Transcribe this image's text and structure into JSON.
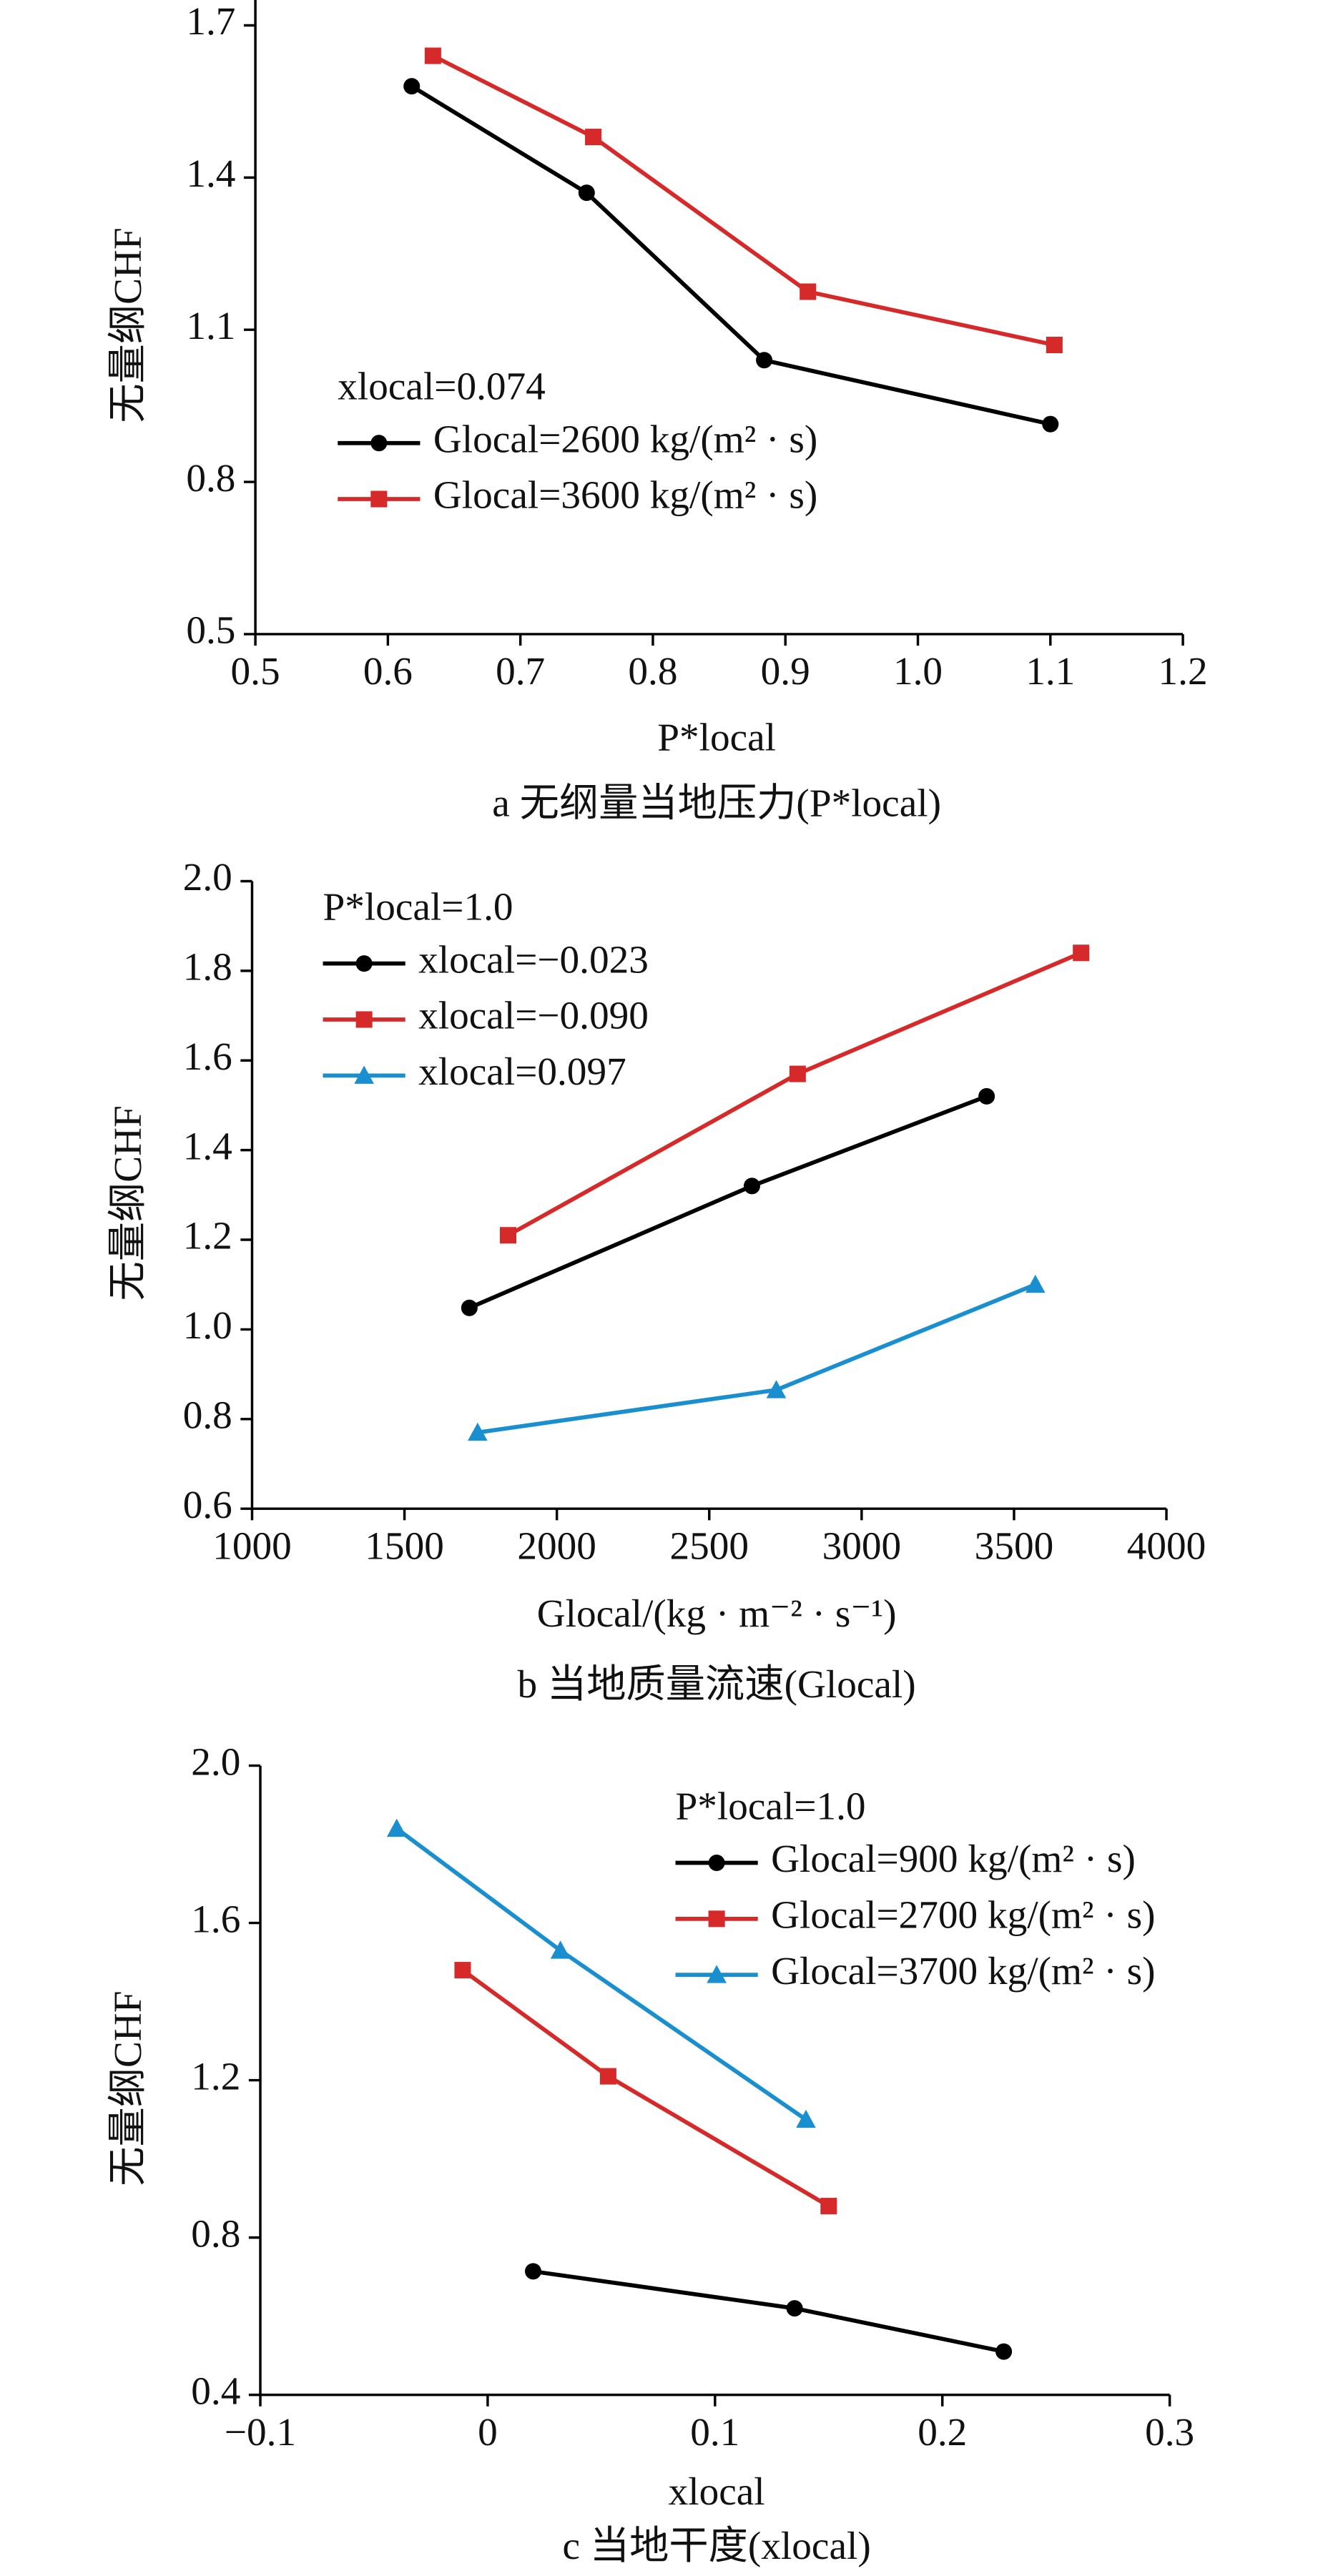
{
  "chart_data": [
    {
      "type": "line",
      "ylabel": "无量纲CHF",
      "xlabel": "P*local",
      "caption": "a  无纲量当地压力(P*local)",
      "annotation": "xlocal=0.074",
      "legend": "lower left",
      "xlim": [
        0.5,
        1.2
      ],
      "xticks": [
        0.5,
        0.6,
        0.7,
        0.8,
        0.9,
        {
          "value": 1,
          "label": "1.0"
        },
        1.1,
        1.2
      ],
      "ylim": [
        0.5,
        1.75
      ],
      "yticks": [
        0.5,
        0.8,
        1.1,
        1.4,
        1.7
      ],
      "series": [
        {
          "name": "Glocal=2600 kg/(m² · s)",
          "color": "#000000",
          "marker": "circle",
          "x": [
            0.618,
            0.75,
            0.884,
            1.1
          ],
          "values": [
            1.58,
            1.37,
            1.04,
            0.914
          ]
        },
        {
          "name": "Glocal=3600 kg/(m² · s)",
          "color": "#d62a2a",
          "marker": "square",
          "x": [
            0.634,
            0.755,
            0.917,
            1.103
          ],
          "values": [
            1.64,
            1.48,
            1.175,
            1.07
          ]
        }
      ]
    },
    {
      "type": "line",
      "ylabel": "无量纲CHF",
      "xlabel": "Glocal/(kg · m⁻² · s⁻¹)",
      "caption": "b  当地质量流速(Glocal)",
      "annotation": "P*local=1.0",
      "legend": "upper left",
      "xlim": [
        1000,
        4000
      ],
      "xticks": [
        1000,
        1500,
        2000,
        2500,
        3000,
        3500,
        4000
      ],
      "ylim": [
        0.6,
        2.0
      ],
      "yticks": [
        0.6,
        0.8,
        {
          "value": 1,
          "label": "1.0"
        },
        1.2,
        1.4,
        1.6,
        1.8,
        {
          "value": 2,
          "label": "2.0"
        }
      ],
      "series": [
        {
          "name": "xlocal=−0.023",
          "color": "#000000",
          "marker": "circle",
          "x": [
            1713,
            2640,
            3410
          ],
          "values": [
            1.048,
            1.32,
            1.52
          ]
        },
        {
          "name": "xlocal=−0.090",
          "color": "#d62a2a",
          "marker": "square",
          "x": [
            1840,
            2790,
            3720
          ],
          "values": [
            1.21,
            1.57,
            1.84
          ]
        },
        {
          "name": "xlocal=0.097",
          "color": "#1a8fd0",
          "marker": "triangle",
          "x": [
            1740,
            2720,
            3570
          ],
          "values": [
            0.77,
            0.865,
            1.1
          ]
        }
      ]
    },
    {
      "type": "line",
      "ylabel": "无量纲CHF",
      "xlabel": "xlocal",
      "caption": "c  当地干度(xlocal)",
      "annotation": "P*local=1.0",
      "legend": "upper right",
      "xlim": [
        -0.1,
        0.3
      ],
      "xticks": [
        {
          "value": -0.1,
          "label": "−0.1"
        },
        0,
        0.1,
        0.2,
        0.3
      ],
      "ylim": [
        0.4,
        2.0
      ],
      "yticks": [
        0.4,
        0.8,
        1.2,
        1.6,
        {
          "value": 2,
          "label": "2.0"
        }
      ],
      "series": [
        {
          "name": "Glocal=900 kg/(m² · s)",
          "color": "#000000",
          "marker": "circle",
          "x": [
            0.02,
            0.135,
            0.227
          ],
          "values": [
            0.714,
            0.62,
            0.51
          ]
        },
        {
          "name": "Glocal=2700 kg/(m² · s)",
          "color": "#d62a2a",
          "marker": "square",
          "x": [
            -0.011,
            0.053,
            0.15
          ],
          "values": [
            1.48,
            1.21,
            0.88
          ]
        },
        {
          "name": "Glocal=3700 kg/(m² · s)",
          "color": "#1a8fd0",
          "marker": "triangle",
          "x": [
            -0.04,
            0.032,
            0.14
          ],
          "values": [
            1.84,
            1.53,
            1.1
          ]
        }
      ]
    }
  ]
}
